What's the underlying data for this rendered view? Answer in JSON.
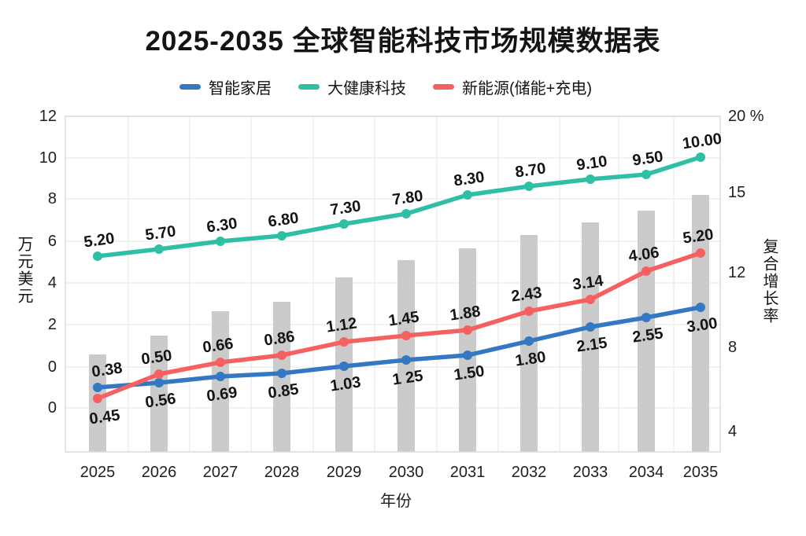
{
  "title": "2025-2035 全球智能科技市场规模数据表",
  "legend": {
    "items": [
      {
        "label": "智能家居",
        "color": "#3477c2"
      },
      {
        "label": "大健康科技",
        "color": "#2ebfa5"
      },
      {
        "label": "新能源(储能+充电)",
        "color": "#f56161"
      }
    ]
  },
  "axes": {
    "left": {
      "title": "万元美元",
      "tick_labels": [
        "12",
        "10",
        "8",
        "6",
        "4",
        "2",
        "0",
        "0"
      ]
    },
    "right": {
      "title": "复合增长率",
      "tick_labels": [
        "20 %",
        "15",
        "12",
        "8",
        "4"
      ]
    },
    "x": {
      "title": "年份",
      "tick_labels": [
        "2025",
        "2026",
        "2027",
        "2028",
        "2029",
        "2030",
        "2031",
        "2032",
        "2033",
        "2034",
        "2035"
      ]
    }
  },
  "chart_data": {
    "type": "line",
    "subtype": "combo: 3 line series on left axis + unlabeled gray background bars on right axis",
    "categories": [
      2025,
      2026,
      2027,
      2028,
      2029,
      2030,
      2031,
      2032,
      2033,
      2034,
      2035
    ],
    "series": [
      {
        "name": "智能家居",
        "chart_type": "line",
        "color": "#3477c2",
        "axis": "left",
        "values": [
          0.38,
          0.56,
          0.69,
          0.85,
          1.03,
          1.25,
          1.5,
          1.8,
          2.15,
          2.55,
          3.0
        ],
        "point_labels": [
          "0.38",
          "0.56",
          "0.69",
          "0.85",
          "1.03",
          "1 25",
          "1.50",
          "1.80",
          "2.15",
          "2.55",
          "3.00"
        ]
      },
      {
        "name": "大健康科技",
        "chart_type": "line",
        "color": "#2ebfa5",
        "axis": "left",
        "values": [
          5.2,
          5.7,
          6.3,
          6.8,
          7.3,
          7.8,
          8.3,
          8.7,
          9.1,
          9.5,
          10.0
        ],
        "point_labels": [
          "5.20",
          "5.70",
          "6.30",
          "6.80",
          "7.30",
          "7.80",
          "8.30",
          "8.70",
          "9.10",
          "9.50",
          "10.00"
        ]
      },
      {
        "name": "新能源(储能+充电)",
        "chart_type": "line",
        "color": "#f56161",
        "axis": "left",
        "values": [
          0.45,
          0.5,
          0.66,
          0.86,
          1.12,
          1.45,
          1.88,
          2.43,
          3.14,
          4.06,
          5.2
        ],
        "point_labels": [
          "0.45",
          "0.50",
          "0.66",
          "0.86",
          "1.12",
          "1.45",
          "1.88",
          "2.43",
          "3.14",
          "4.06",
          "5.20"
        ]
      },
      {
        "name": "复合增长率",
        "chart_type": "bar",
        "color": "#cbcbcb",
        "axis": "right",
        "labeled": false,
        "values_pct_estimated": [
          7.6,
          8.6,
          9.9,
          10.4,
          11.7,
          12.5,
          12.9,
          13.5,
          13.9,
          14.4,
          15.0
        ]
      }
    ],
    "left_axis_tick_values": [
      12,
      10,
      8,
      6,
      4,
      2,
      0,
      0
    ],
    "right_axis_tick_values_pct": [
      20,
      15,
      12,
      8,
      4
    ],
    "grid": true,
    "legend_position": "top",
    "ylabel_left": "万元美元",
    "ylabel_right": "复合增长率",
    "xlabel": "年份"
  }
}
